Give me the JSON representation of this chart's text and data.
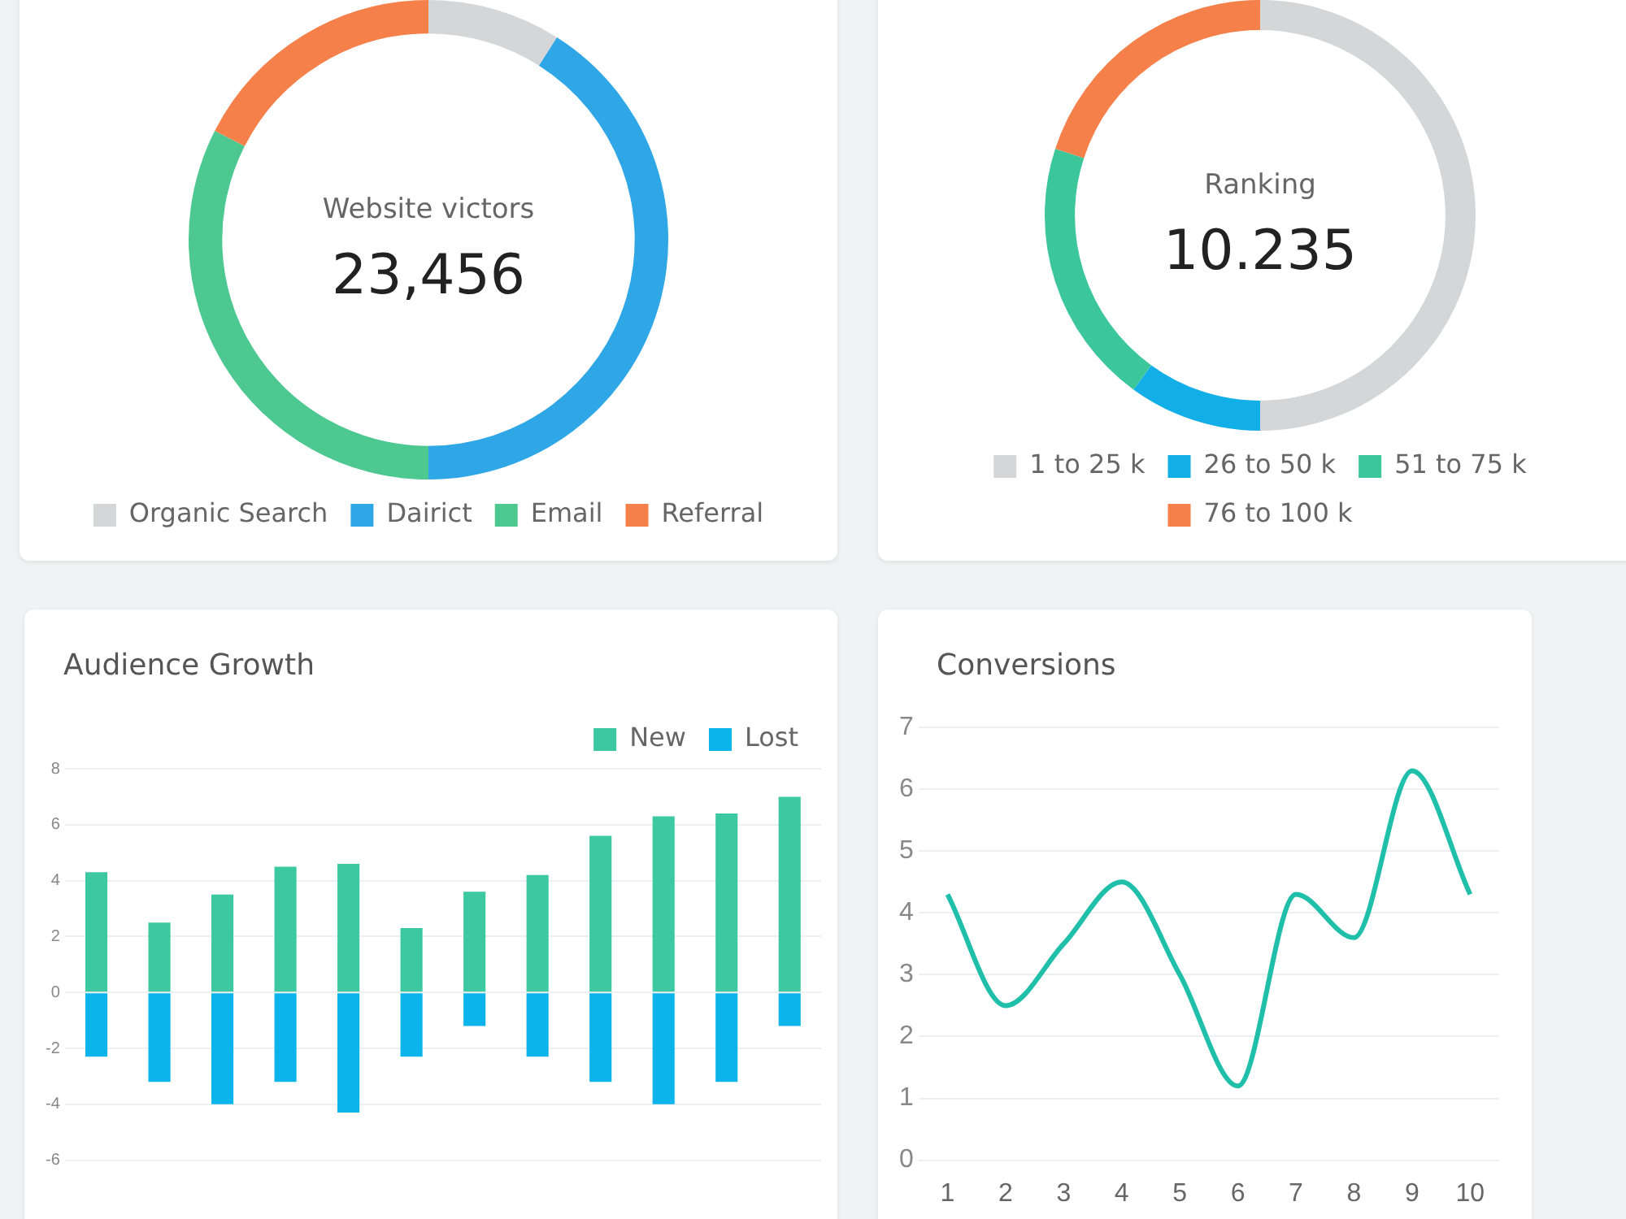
{
  "chart_data": [
    {
      "type": "donut",
      "title": "Website victors",
      "subtitle": "23,456",
      "categories": [
        "Organic Search",
        "Dairict",
        "Email",
        "Referral"
      ],
      "values": [
        9,
        41,
        32.5,
        17.5
      ],
      "colors": [
        "#d4d6d8",
        "#2fa6e6",
        "#4cc890",
        "#f5804a"
      ],
      "legend": "bottom"
    },
    {
      "type": "donut",
      "title": "Ranking",
      "subtitle": "10.235",
      "categories": [
        "1 to 25 k",
        "26 to 50 k",
        "51 to 75 k",
        "76 to 100 k"
      ],
      "values": [
        50,
        10,
        20,
        20
      ],
      "colors": [
        "#d4d6d8",
        "#12aee8",
        "#3cc79a",
        "#f5804a"
      ],
      "legend": "bottom"
    },
    {
      "type": "bar",
      "title": "Audience Growth",
      "stacked": true,
      "categories": [
        null,
        null,
        null,
        null,
        null,
        null,
        null,
        null,
        null,
        null,
        null,
        null
      ],
      "series": [
        {
          "name": "New",
          "color": "#3cc8a0",
          "values": [
            4.3,
            2.5,
            3.5,
            4.5,
            4.6,
            2.3,
            3.6,
            4.2,
            5.6,
            6.3,
            6.4,
            7.0
          ]
        },
        {
          "name": "Lost",
          "color": "#0bb4ea",
          "values": [
            -2.3,
            -3.2,
            -4.0,
            -3.2,
            -4.3,
            -2.3,
            -1.2,
            -2.3,
            -3.2,
            -4.0,
            -3.2,
            -1.2
          ]
        }
      ],
      "ylim": [
        -6,
        8
      ],
      "yticks": [
        -6,
        -4,
        -2,
        0,
        2,
        4,
        6,
        8
      ],
      "grid": "y",
      "legend": "top right"
    },
    {
      "type": "line",
      "title": "Conversions",
      "categories": [
        "1",
        "2",
        "3",
        "4",
        "5",
        "6",
        "7",
        "8",
        "9",
        "10"
      ],
      "series": [
        {
          "color": "#1fbfaa",
          "values": [
            4.3,
            2.5,
            3.5,
            4.5,
            3.0,
            1.2,
            4.3,
            3.6,
            6.3,
            4.3
          ]
        }
      ],
      "ylim": [
        0,
        7
      ],
      "yticks": [
        0,
        1,
        2,
        3,
        4,
        5,
        6,
        7
      ],
      "grid": "y",
      "marker": "none",
      "line_style": "solid"
    }
  ]
}
